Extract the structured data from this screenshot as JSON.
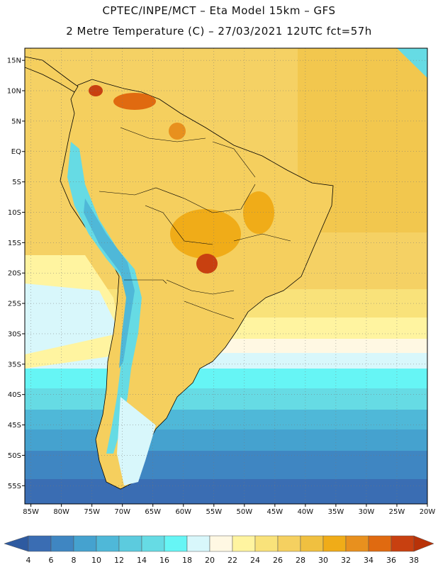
{
  "header": {
    "line1": "CPTEC/INPE/MCT –  Eta Model 15km – GFS",
    "line2": "2 Metre Temperature (C) – 27/03/2021 12UTC fct=57h"
  },
  "map": {
    "lat_ticks": [
      "15N",
      "10N",
      "5N",
      "EQ",
      "5S",
      "10S",
      "15S",
      "20S",
      "25S",
      "30S",
      "35S",
      "40S",
      "45S",
      "50S",
      "55S"
    ],
    "lon_ticks": [
      "85W",
      "80W",
      "75W",
      "70W",
      "65W",
      "60W",
      "55W",
      "50W",
      "45W",
      "40W",
      "35W",
      "30W",
      "25W",
      "20W"
    ],
    "lat_values": [
      15,
      10,
      5,
      0,
      -5,
      -10,
      -15,
      -20,
      -25,
      -30,
      -35,
      -40,
      -45,
      -50,
      -55
    ],
    "lon_values": [
      -85,
      -80,
      -75,
      -70,
      -65,
      -60,
      -55,
      -50,
      -45,
      -40,
      -35,
      -30,
      -25,
      -20
    ],
    "extent": {
      "lon_min": -86,
      "lon_max": -20,
      "lat_min": -58,
      "lat_max": 17
    }
  },
  "colorbar": {
    "labels": [
      "4",
      "6",
      "8",
      "10",
      "12",
      "14",
      "16",
      "18",
      "20",
      "22",
      "24",
      "26",
      "28",
      "30",
      "32",
      "34",
      "36",
      "38"
    ],
    "colors": [
      "#3a6db3",
      "#3f86c2",
      "#45a2cf",
      "#4fb8d8",
      "#5ccbde",
      "#66dbe4",
      "#66f5f5",
      "#d8f7fb",
      "#fff8e3",
      "#fff4a0",
      "#f9e27a",
      "#f5d060",
      "#f0c040",
      "#f0ac18",
      "#e8901e",
      "#e06a10",
      "#c84010"
    ],
    "left_arrow_color": "#2e5aa0",
    "right_arrow_color": "#b83208"
  },
  "colors": {
    "ocean_south": "#2f63a8",
    "land_fill": "#f5cf5e",
    "border": "#000000"
  }
}
